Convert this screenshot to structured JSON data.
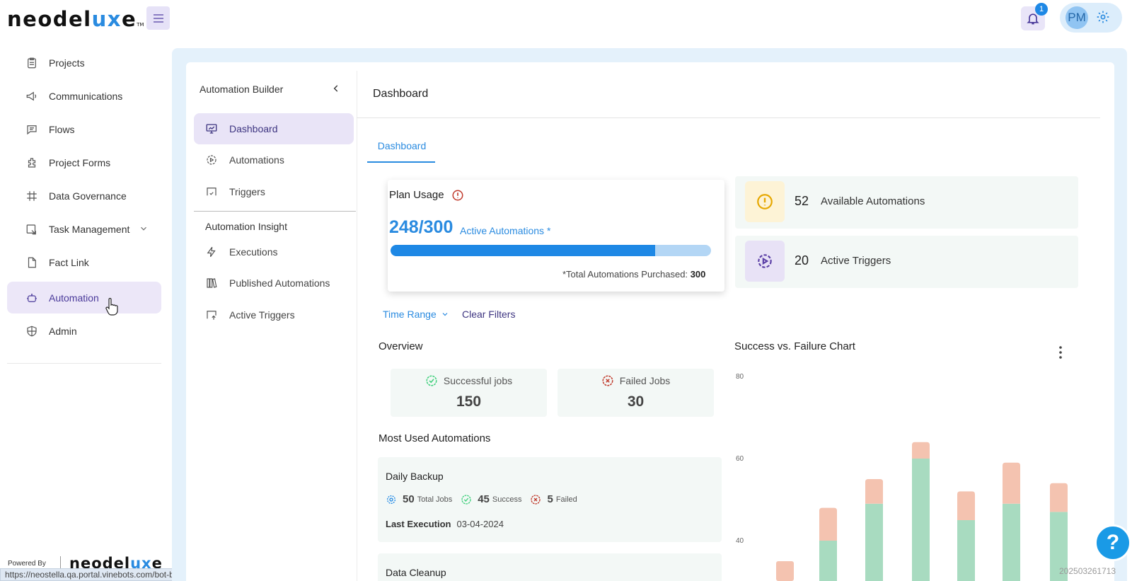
{
  "brand": {
    "name_a": "neodel",
    "name_b": "ux",
    "name_c": "e",
    "tm": "TM"
  },
  "header": {
    "notification_count": "1",
    "avatar_initials": "PM"
  },
  "nav": {
    "items": [
      {
        "label": "Projects",
        "icon": "clipboard-icon"
      },
      {
        "label": "Communications",
        "icon": "megaphone-icon"
      },
      {
        "label": "Flows",
        "icon": "chat-icon"
      },
      {
        "label": "Project Forms",
        "icon": "puzzle-icon"
      },
      {
        "label": "Data Governance",
        "icon": "grid-icon"
      },
      {
        "label": "Task Management",
        "icon": "task-icon"
      },
      {
        "label": "Fact Link",
        "icon": "file-icon"
      },
      {
        "label": "Automation",
        "icon": "robot-icon"
      },
      {
        "label": "Admin",
        "icon": "shield-icon"
      }
    ],
    "active": "Automation"
  },
  "footer": {
    "powered_by": "Powered By",
    "brand_a": "neodel",
    "brand_b": "ux",
    "brand_c": "e",
    "url": "https://neostella.qa.portal.vinebots.com/bot-builder",
    "stamp": "202503261713"
  },
  "builder": {
    "title": "Automation Builder",
    "items": [
      "Dashboard",
      "Automations",
      "Triggers"
    ],
    "insight_title": "Automation Insight",
    "insight_items": [
      "Executions",
      "Published Automations",
      "Active Triggers"
    ]
  },
  "dashboard": {
    "title": "Dashboard",
    "tab": "Dashboard",
    "plan": {
      "title": "Plan Usage",
      "used_display": "248/300",
      "used": 248,
      "total": 300,
      "active_label": "Active Automations *",
      "footer_label": "*Total Automations Purchased:",
      "footer_value": "300"
    },
    "stats": [
      {
        "value": "52",
        "label": "Available Automations",
        "icon": "alert-icon",
        "color": "#e6a700"
      },
      {
        "value": "20",
        "label": "Active Triggers",
        "icon": "gear-play-icon",
        "color": "#5b3fa6"
      }
    ],
    "filters": {
      "time_range": "Time Range",
      "clear": "Clear Filters"
    },
    "overview": {
      "title": "Overview",
      "success_label": "Successful jobs",
      "success_value": "150",
      "failed_label": "Failed Jobs",
      "failed_value": "30"
    },
    "most_used": {
      "title": "Most Used Automations",
      "items": [
        {
          "name": "Daily Backup",
          "total": "50",
          "total_lbl": "Total Jobs",
          "success": "45",
          "success_lbl": "Success",
          "failed": "5",
          "failed_lbl": "Failed",
          "last_lbl": "Last Execution",
          "last": "03-04-2024"
        },
        {
          "name": "Data Cleanup"
        }
      ]
    }
  },
  "chart_data": {
    "type": "bar",
    "title": "Success vs. Failure Chart",
    "stacked": true,
    "y_ticks": [
      "80",
      "60",
      "40"
    ],
    "ylim": [
      0,
      80
    ],
    "series": [
      {
        "values": [
          null,
          40,
          49,
          60,
          45,
          49,
          47
        ],
        "color": "#a8dbc0"
      },
      {
        "values": [
          null,
          8,
          6,
          4,
          7,
          10,
          7
        ],
        "color": "#f4c3b0"
      }
    ],
    "partial_first_bar_top": 35
  }
}
